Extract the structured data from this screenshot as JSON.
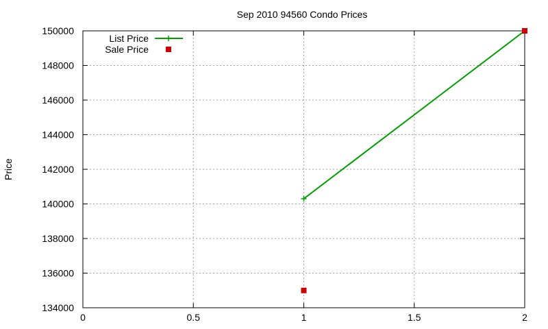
{
  "chart_data": {
    "type": "line",
    "title": "Sep 2010 94560 Condo Prices",
    "xlabel": "",
    "ylabel": "Price",
    "xlim": [
      0,
      2
    ],
    "ylim": [
      134000,
      150000
    ],
    "x_ticks": [
      0,
      0.5,
      1,
      1.5,
      2
    ],
    "x_tick_labels": [
      "0",
      "0.5",
      "1",
      "1.5",
      "2"
    ],
    "y_ticks": [
      134000,
      136000,
      138000,
      140000,
      142000,
      144000,
      146000,
      148000,
      150000
    ],
    "y_tick_labels": [
      "134000",
      "136000",
      "138000",
      "140000",
      "142000",
      "144000",
      "146000",
      "148000",
      "150000"
    ],
    "grid": true,
    "legend_position": "top-left",
    "series": [
      {
        "name": "List Price",
        "style": "linespoints",
        "marker": "plus",
        "color": "#00a000",
        "points": [
          {
            "x": 1,
            "y": 140300
          },
          {
            "x": 2,
            "y": 150000
          }
        ]
      },
      {
        "name": "Sale Price",
        "style": "points",
        "marker": "square",
        "color": "#cc0000",
        "points": [
          {
            "x": 1,
            "y": 135000
          },
          {
            "x": 2,
            "y": 150000
          }
        ]
      }
    ]
  }
}
